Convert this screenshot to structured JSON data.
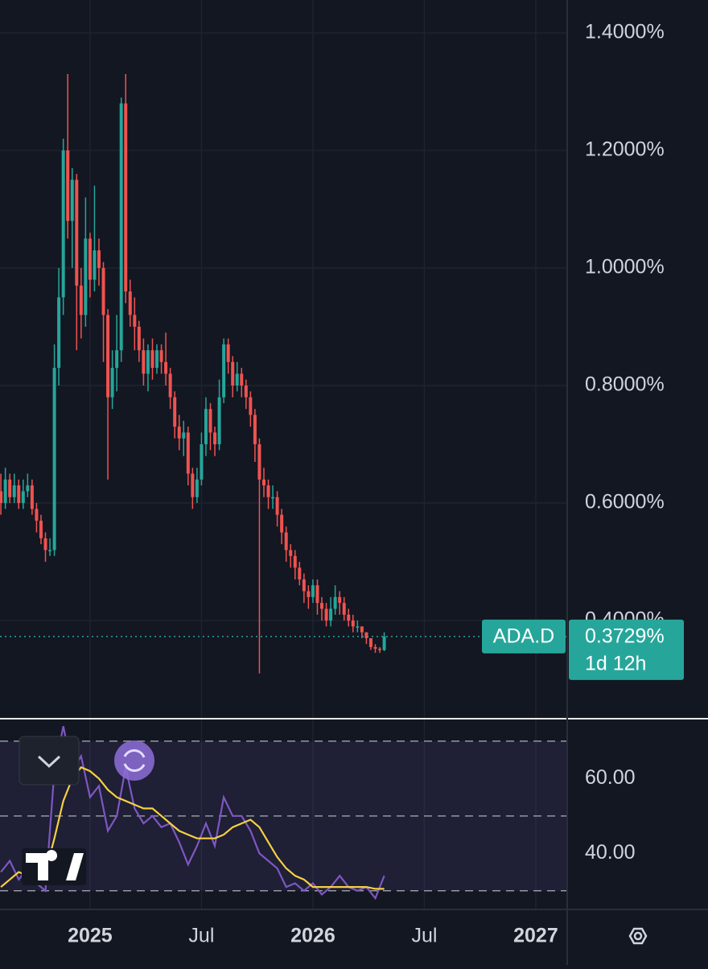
{
  "chart_data": [
    {
      "type": "candlestick",
      "symbol": "ADA.D",
      "last_label": "0.3729%",
      "countdown": "1d 12h",
      "up_color": "#26a69a",
      "down_color": "#ef5350",
      "x": [
        2024.6,
        2024.62,
        2024.64,
        2024.66,
        2024.68,
        2024.7,
        2024.72,
        2024.74,
        2024.76,
        2024.78,
        2024.8,
        2024.82,
        2024.84,
        2024.86,
        2024.88,
        2024.9,
        2024.92,
        2024.94,
        2024.96,
        2024.98,
        2025.0,
        2025.02,
        2025.04,
        2025.06,
        2025.08,
        2025.1,
        2025.12,
        2025.14,
        2025.16,
        2025.18,
        2025.2,
        2025.22,
        2025.24,
        2025.26,
        2025.28,
        2025.3,
        2025.32,
        2025.34,
        2025.36,
        2025.38,
        2025.4,
        2025.42,
        2025.44,
        2025.46,
        2025.48,
        2025.5,
        2025.52,
        2025.54,
        2025.56,
        2025.58,
        2025.6,
        2025.62,
        2025.64,
        2025.66,
        2025.68,
        2025.7,
        2025.72,
        2025.74,
        2025.76,
        2025.78,
        2025.8,
        2025.82,
        2025.84,
        2025.86,
        2025.88,
        2025.9,
        2025.92,
        2025.94,
        2025.96,
        2025.98,
        2026.0,
        2026.02,
        2026.04,
        2026.06,
        2026.08,
        2026.1,
        2026.12,
        2026.14,
        2026.16,
        2026.18,
        2026.2,
        2026.22,
        2026.24,
        2026.26,
        2026.28,
        2026.3,
        2026.32
      ],
      "open": [
        0.62,
        0.6,
        0.64,
        0.61,
        0.63,
        0.6,
        0.62,
        0.63,
        0.59,
        0.57,
        0.54,
        0.52,
        0.52,
        0.83,
        0.95,
        1.2,
        1.08,
        1.15,
        0.97,
        0.92,
        1.05,
        0.98,
        1.03,
        1.0,
        0.92,
        0.78,
        0.83,
        0.86,
        1.28,
        0.96,
        0.92,
        0.9,
        0.86,
        0.82,
        0.86,
        0.83,
        0.86,
        0.84,
        0.82,
        0.78,
        0.73,
        0.71,
        0.72,
        0.65,
        0.61,
        0.64,
        0.7,
        0.76,
        0.72,
        0.7,
        0.78,
        0.87,
        0.84,
        0.8,
        0.82,
        0.8,
        0.78,
        0.75,
        0.7,
        0.64,
        0.63,
        0.61,
        0.61,
        0.58,
        0.55,
        0.52,
        0.51,
        0.49,
        0.47,
        0.45,
        0.44,
        0.46,
        0.43,
        0.42,
        0.4,
        0.42,
        0.44,
        0.43,
        0.41,
        0.4,
        0.39,
        0.39,
        0.38,
        0.37,
        0.355,
        0.352,
        0.35
      ],
      "high": [
        0.65,
        0.66,
        0.65,
        0.65,
        0.64,
        0.64,
        0.65,
        0.64,
        0.6,
        0.58,
        0.55,
        0.54,
        0.87,
        1.0,
        1.22,
        1.33,
        1.17,
        1.16,
        1.0,
        1.12,
        1.06,
        1.14,
        1.05,
        1.01,
        0.93,
        0.86,
        0.92,
        1.29,
        1.33,
        0.98,
        0.95,
        0.91,
        0.88,
        0.87,
        0.88,
        0.87,
        0.87,
        0.89,
        0.83,
        0.79,
        0.75,
        0.74,
        0.73,
        0.66,
        0.66,
        0.72,
        0.78,
        0.77,
        0.73,
        0.81,
        0.88,
        0.88,
        0.85,
        0.84,
        0.83,
        0.81,
        0.79,
        0.76,
        0.71,
        0.66,
        0.64,
        0.63,
        0.62,
        0.59,
        0.56,
        0.53,
        0.52,
        0.5,
        0.48,
        0.46,
        0.47,
        0.47,
        0.44,
        0.43,
        0.44,
        0.46,
        0.45,
        0.44,
        0.42,
        0.41,
        0.4,
        0.39,
        0.38,
        0.37,
        0.36,
        0.355,
        0.38
      ],
      "low": [
        0.58,
        0.59,
        0.6,
        0.6,
        0.59,
        0.59,
        0.61,
        0.58,
        0.55,
        0.53,
        0.5,
        0.51,
        0.51,
        0.8,
        0.92,
        1.05,
        1.0,
        0.86,
        0.88,
        0.9,
        0.95,
        0.96,
        0.97,
        0.84,
        0.64,
        0.76,
        0.79,
        0.84,
        0.94,
        0.9,
        0.86,
        0.84,
        0.8,
        0.79,
        0.81,
        0.82,
        0.82,
        0.8,
        0.76,
        0.71,
        0.69,
        0.68,
        0.63,
        0.59,
        0.6,
        0.63,
        0.68,
        0.69,
        0.68,
        0.69,
        0.77,
        0.82,
        0.78,
        0.79,
        0.78,
        0.76,
        0.73,
        0.67,
        0.31,
        0.61,
        0.59,
        0.59,
        0.56,
        0.53,
        0.5,
        0.49,
        0.47,
        0.46,
        0.43,
        0.42,
        0.43,
        0.41,
        0.4,
        0.39,
        0.39,
        0.41,
        0.41,
        0.4,
        0.39,
        0.38,
        0.38,
        0.37,
        0.36,
        0.35,
        0.345,
        0.345,
        0.348
      ],
      "close": [
        0.6,
        0.64,
        0.61,
        0.63,
        0.6,
        0.62,
        0.63,
        0.59,
        0.57,
        0.54,
        0.52,
        0.52,
        0.83,
        0.95,
        1.2,
        1.08,
        1.15,
        0.97,
        0.92,
        1.05,
        0.98,
        1.03,
        1.0,
        0.92,
        0.78,
        0.83,
        0.86,
        1.28,
        0.96,
        0.92,
        0.9,
        0.86,
        0.82,
        0.86,
        0.83,
        0.86,
        0.84,
        0.82,
        0.78,
        0.73,
        0.71,
        0.72,
        0.65,
        0.61,
        0.64,
        0.7,
        0.76,
        0.72,
        0.7,
        0.78,
        0.87,
        0.84,
        0.8,
        0.82,
        0.8,
        0.78,
        0.75,
        0.7,
        0.64,
        0.63,
        0.61,
        0.61,
        0.58,
        0.55,
        0.52,
        0.51,
        0.49,
        0.47,
        0.45,
        0.44,
        0.46,
        0.43,
        0.42,
        0.4,
        0.42,
        0.44,
        0.43,
        0.41,
        0.4,
        0.39,
        0.39,
        0.38,
        0.37,
        0.355,
        0.352,
        0.35,
        0.3729
      ],
      "xlim": [
        2024.596,
        2027.141
      ],
      "xticks": [
        {
          "value": 2025,
          "label": "2025"
        },
        {
          "value": 2025.5,
          "label": "Jul"
        },
        {
          "value": 2026,
          "label": "2026"
        },
        {
          "value": 2026.5,
          "label": "Jul"
        },
        {
          "value": 2027,
          "label": "2027"
        }
      ],
      "ylim": [
        0.233,
        1.456
      ],
      "yticks": [
        {
          "value": 1.4,
          "label": "1.4000%"
        },
        {
          "value": 1.2,
          "label": "1.2000%"
        },
        {
          "value": 1.0,
          "label": "1.0000%"
        },
        {
          "value": 0.8,
          "label": "0.8000%"
        },
        {
          "value": 0.6,
          "label": "0.6000%"
        },
        {
          "value": 0.4,
          "label": "0.4000%"
        }
      ],
      "grid": true
    },
    {
      "type": "line",
      "x": [
        2024.6,
        2024.64,
        2024.68,
        2024.72,
        2024.76,
        2024.8,
        2024.84,
        2024.88,
        2024.92,
        2024.96,
        2025.0,
        2025.04,
        2025.08,
        2025.12,
        2025.16,
        2025.2,
        2025.24,
        2025.28,
        2025.32,
        2025.36,
        2025.4,
        2025.44,
        2025.48,
        2025.52,
        2025.56,
        2025.6,
        2025.64,
        2025.68,
        2025.72,
        2025.76,
        2025.8,
        2025.84,
        2025.88,
        2025.92,
        2025.96,
        2026.0,
        2026.04,
        2026.08,
        2026.12,
        2026.16,
        2026.2,
        2026.24,
        2026.28,
        2026.32
      ],
      "series": [
        {
          "color": "#7e57c2",
          "values": [
            35,
            38,
            33,
            36,
            32,
            30,
            62,
            74,
            62,
            66,
            55,
            58,
            46,
            50,
            63,
            52,
            48,
            50,
            47,
            48,
            43,
            37,
            42,
            48,
            42,
            55,
            50,
            50,
            46,
            40,
            38,
            36,
            31,
            32,
            30,
            32,
            29,
            31,
            34,
            31,
            30,
            31,
            28,
            34
          ]
        },
        {
          "color": "#f5d142",
          "values": [
            31,
            33,
            35,
            34,
            34,
            35,
            44,
            54,
            60,
            63,
            62,
            60,
            57,
            55,
            54,
            53,
            52,
            52,
            50,
            48,
            46,
            45,
            44,
            44,
            44,
            45,
            47,
            48,
            49,
            47,
            43,
            39,
            36,
            34,
            33,
            31,
            31,
            31,
            31,
            31,
            31,
            31,
            30.5,
            30.5
          ]
        }
      ],
      "xlim": [
        2024.596,
        2027.141
      ],
      "ylim": [
        25,
        76
      ],
      "yticks": [
        {
          "value": 60,
          "label": "60.00"
        },
        {
          "value": 40,
          "label": "40.00"
        }
      ],
      "levels": [
        70,
        50,
        30
      ],
      "band": [
        30,
        70
      ]
    }
  ]
}
